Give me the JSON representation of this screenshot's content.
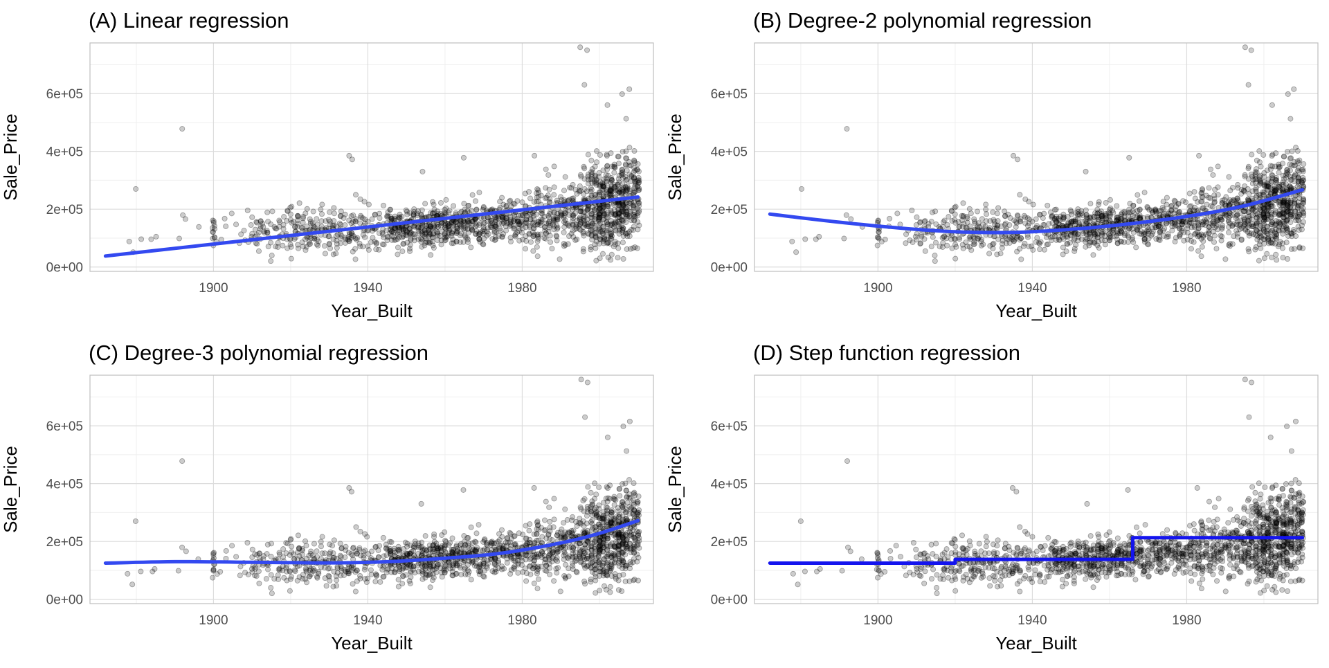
{
  "colors": {
    "point": "#000000",
    "fit_line_smooth": "#3349f0",
    "fit_line_step": "#1414ee",
    "panel_border": "#bdbdbd",
    "grid_major": "#dcdcdc",
    "grid_minor": "#efefef",
    "tick_text": "#4d4d4d",
    "label_text": "#000000"
  },
  "chart_data": [
    {
      "type": "scatter",
      "title": "(A) Linear regression",
      "xlabel": "Year_Built",
      "ylabel": "Sale_Price",
      "xlim": [
        1868,
        2014
      ],
      "ylim": [
        -15000,
        775000
      ],
      "xticks": [
        1900,
        1940,
        1980
      ],
      "xtick_labels": [
        "1900",
        "1940",
        "1980"
      ],
      "yticks": [
        0,
        200000,
        400000,
        600000
      ],
      "ytick_labels": [
        "0e+00",
        "2e+05",
        "4e+05",
        "6e+05"
      ],
      "grid": true,
      "fit": {
        "type": "line",
        "x": [
          1872,
          2010
        ],
        "y": [
          38000,
          242000
        ]
      }
    },
    {
      "type": "scatter",
      "title": "(B) Degree-2 polynomial regression",
      "xlabel": "Year_Built",
      "ylabel": "Sale_Price",
      "xlim": [
        1868,
        2014
      ],
      "ylim": [
        -15000,
        775000
      ],
      "xticks": [
        1900,
        1940,
        1980
      ],
      "xtick_labels": [
        "1900",
        "1940",
        "1980"
      ],
      "yticks": [
        0,
        200000,
        400000,
        600000
      ],
      "ytick_labels": [
        "0e+00",
        "2e+05",
        "4e+05",
        "6e+05"
      ],
      "grid": true,
      "fit": {
        "type": "line",
        "x": [
          1872,
          1890,
          1910,
          1925,
          1940,
          1960,
          1980,
          1995,
          2010
        ],
        "y": [
          183000,
          155000,
          130000,
          120000,
          122000,
          142000,
          175000,
          212000,
          267000
        ]
      }
    },
    {
      "type": "scatter",
      "title": "(C) Degree-3 polynomial regression",
      "xlabel": "Year_Built",
      "ylabel": "Sale_Price",
      "xlim": [
        1868,
        2014
      ],
      "ylim": [
        -15000,
        775000
      ],
      "xticks": [
        1900,
        1940,
        1980
      ],
      "xtick_labels": [
        "1900",
        "1940",
        "1980"
      ],
      "yticks": [
        0,
        200000,
        400000,
        600000
      ],
      "ytick_labels": [
        "0e+00",
        "2e+05",
        "4e+05",
        "6e+05"
      ],
      "grid": true,
      "fit": {
        "type": "line",
        "x": [
          1872,
          1890,
          1910,
          1930,
          1945,
          1960,
          1975,
          1990,
          2000,
          2010
        ],
        "y": [
          125000,
          130000,
          128000,
          126000,
          130000,
          142000,
          160000,
          195000,
          228000,
          272000
        ]
      }
    },
    {
      "type": "scatter",
      "title": "(D) Step function regression",
      "xlabel": "Year_Built",
      "ylabel": "Sale_Price",
      "xlim": [
        1868,
        2014
      ],
      "ylim": [
        -15000,
        775000
      ],
      "xticks": [
        1900,
        1940,
        1980
      ],
      "xtick_labels": [
        "1900",
        "1940",
        "1980"
      ],
      "yticks": [
        0,
        200000,
        400000,
        600000
      ],
      "ytick_labels": [
        "0e+00",
        "2e+05",
        "4e+05",
        "6e+05"
      ],
      "grid": true,
      "fit": {
        "type": "step",
        "x": [
          1872,
          1920,
          1920,
          1966,
          1966,
          2010
        ],
        "y": [
          125000,
          125000,
          138000,
          138000,
          213000,
          213000
        ]
      }
    }
  ]
}
